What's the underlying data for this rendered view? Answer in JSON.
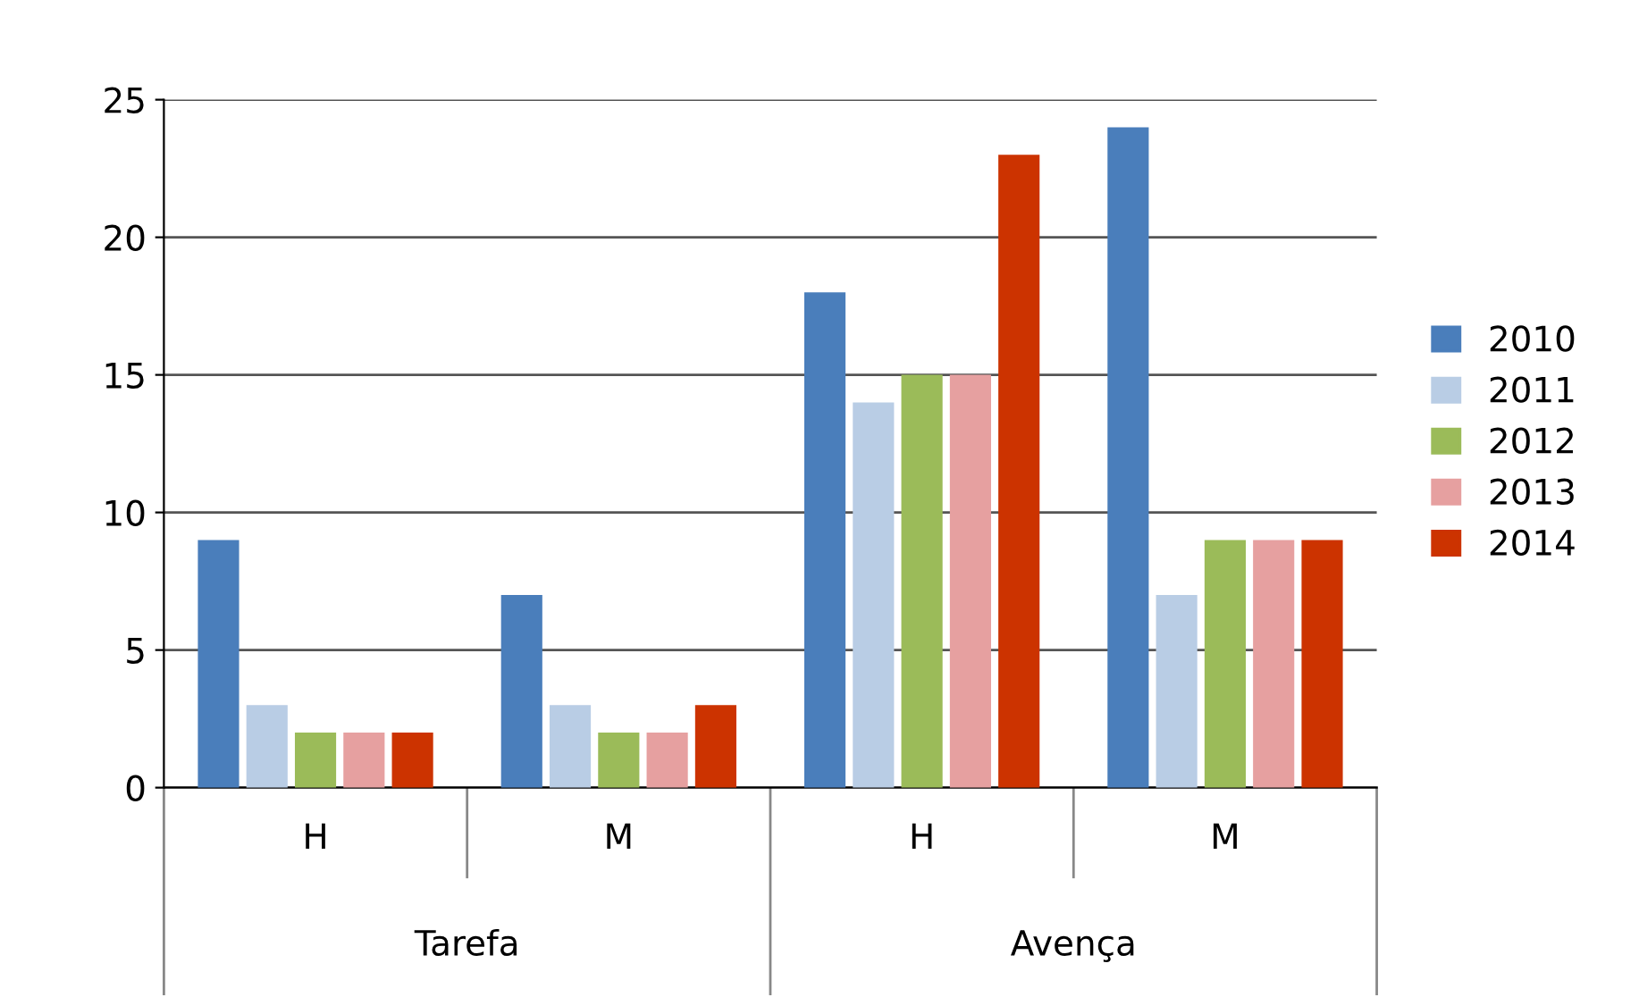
{
  "chart_data": {
    "type": "bar",
    "categories": [
      "H",
      "M",
      "H",
      "M"
    ],
    "annotations": [
      "Tarefa",
      "Avença"
    ],
    "series": [
      {
        "name": "2010",
        "color": "#4a7ebb",
        "values": [
          9,
          7,
          18,
          24
        ]
      },
      {
        "name": "2011",
        "color": "#b9cde5",
        "values": [
          3,
          3,
          14,
          7
        ]
      },
      {
        "name": "2012",
        "color": "#9bbb59",
        "values": [
          2,
          2,
          15,
          9
        ]
      },
      {
        "name": "2013",
        "color": "#e6a0a0",
        "values": [
          2,
          2,
          15,
          9
        ]
      },
      {
        "name": "2014",
        "color": "#cc3300",
        "values": [
          2,
          3,
          23,
          9
        ]
      }
    ],
    "ylim": [
      0,
      25
    ],
    "yticks": [
      0,
      5,
      10,
      15,
      20,
      25
    ],
    "grid": "y",
    "legend": "right"
  }
}
